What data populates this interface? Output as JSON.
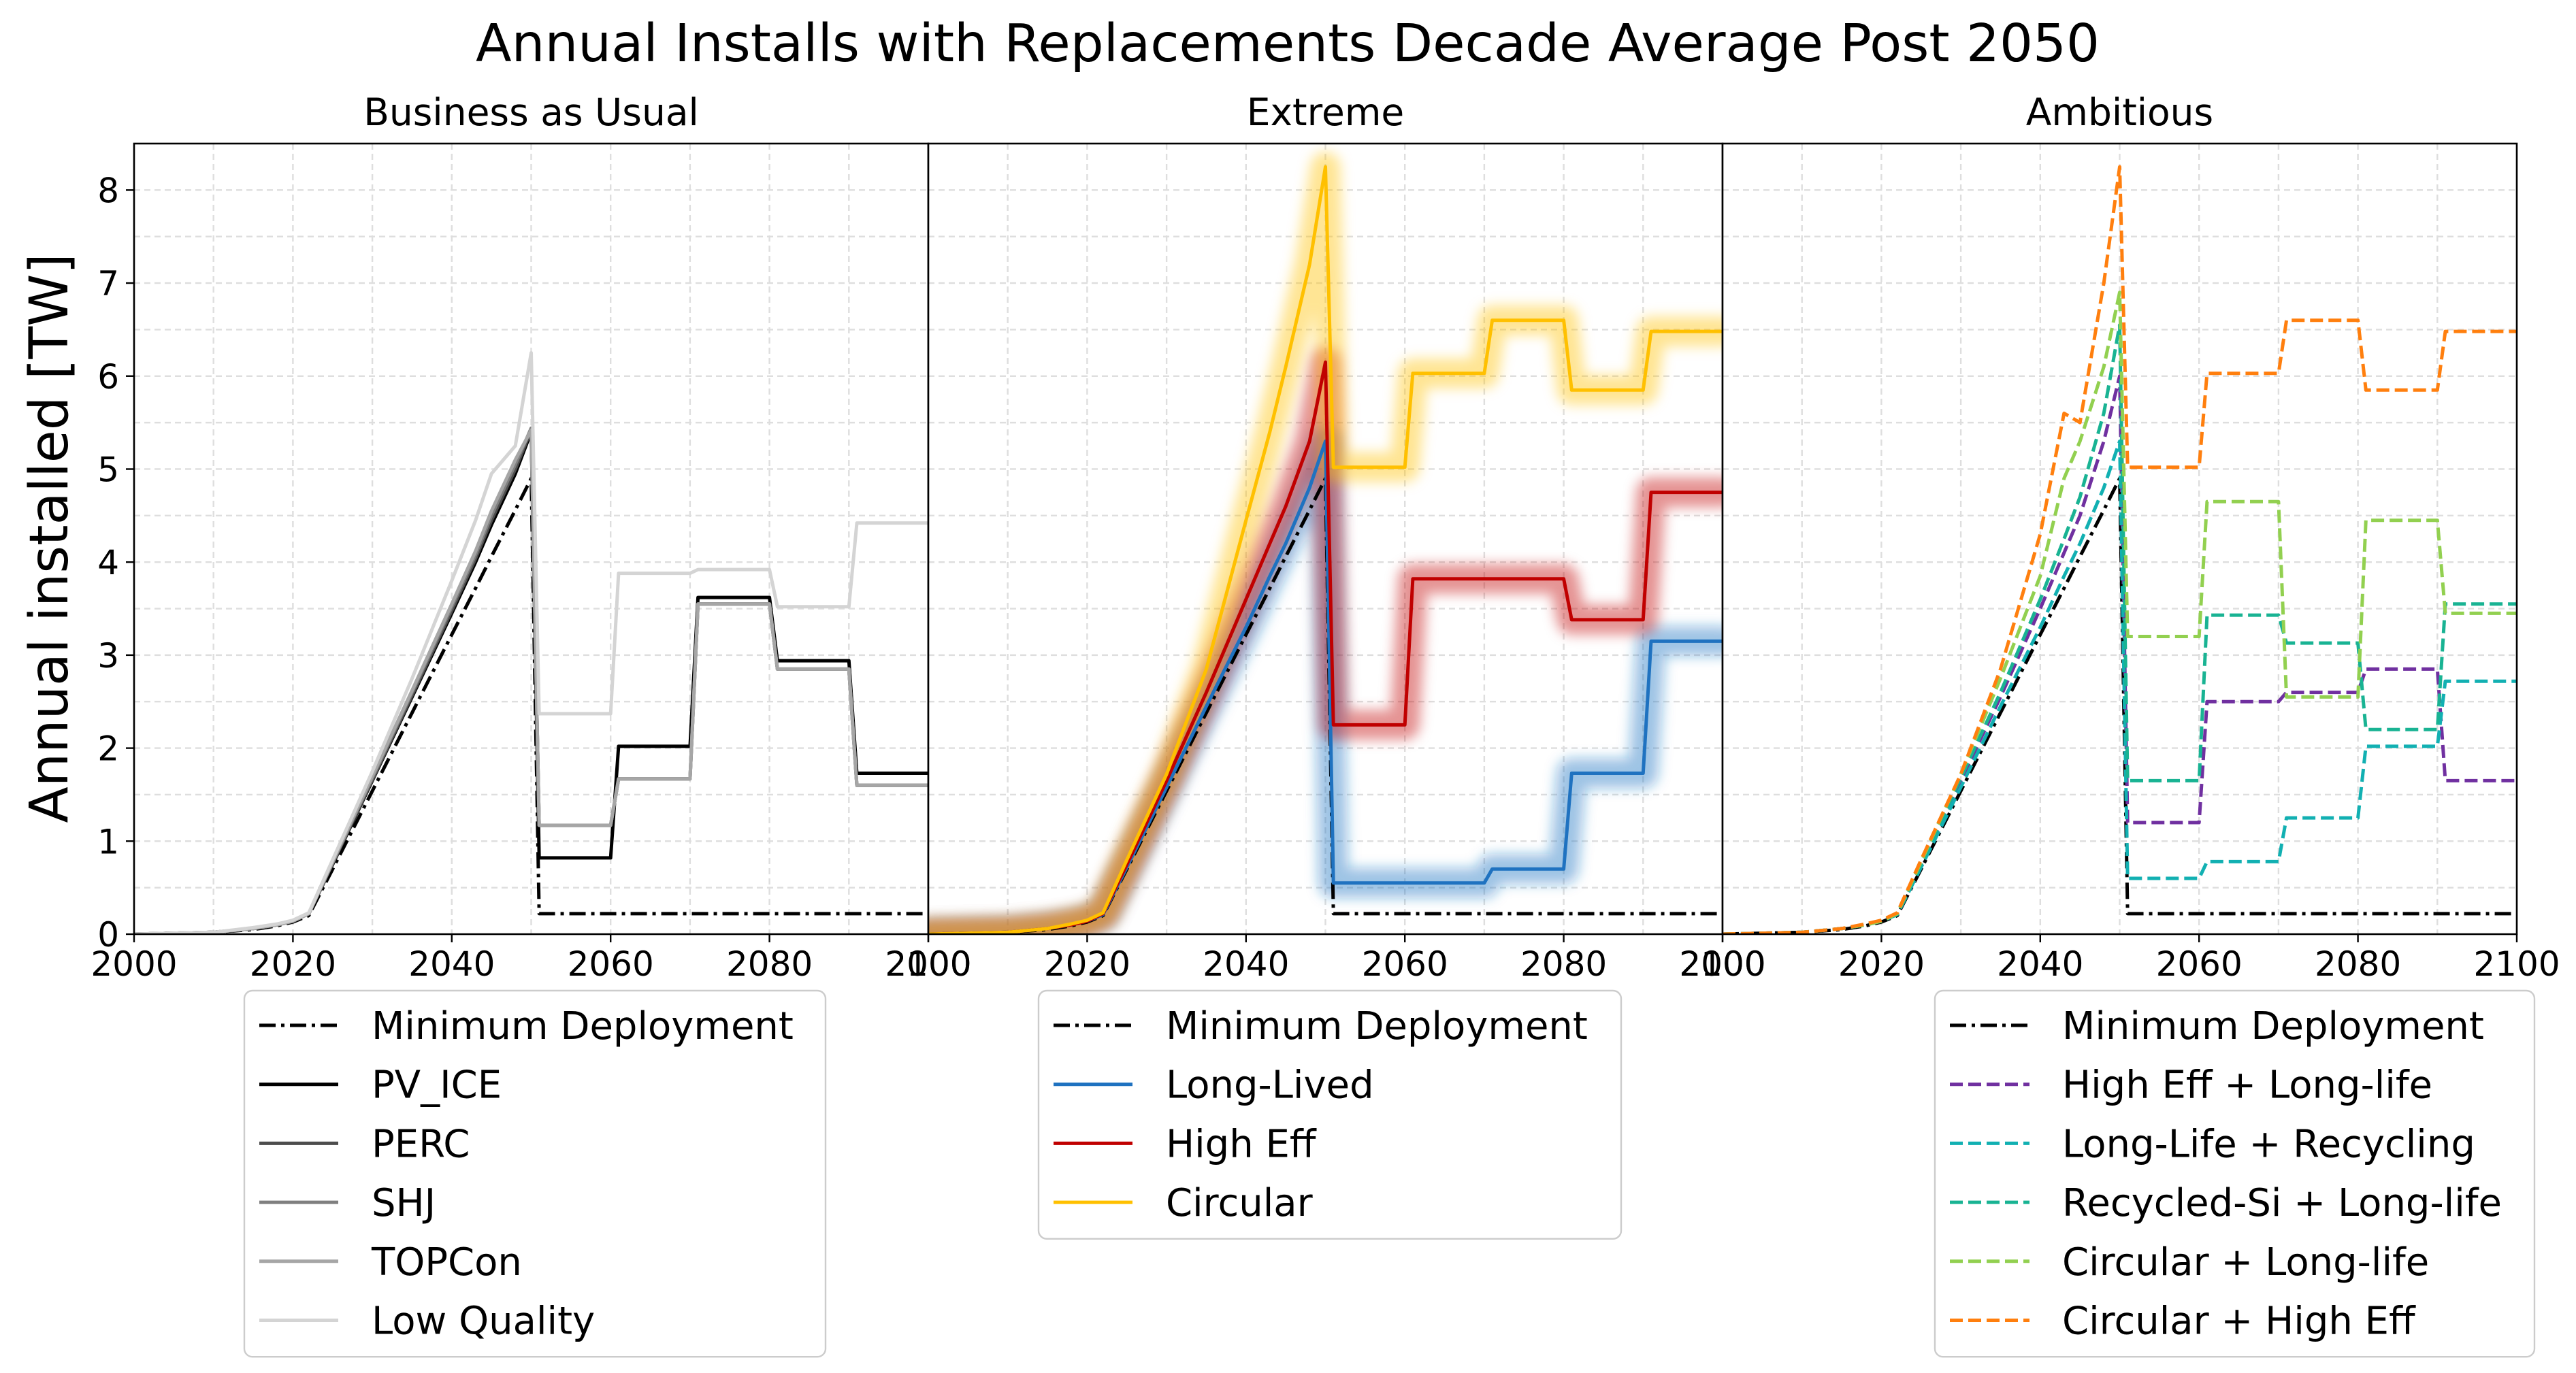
{
  "title": "Annual Installs with Replacements Decade Average Post 2050",
  "chart_data": [
    {
      "type": "line",
      "title": "Business as Usual",
      "ylabel": "Annual installed [TW]",
      "xlim": [
        2000,
        2100
      ],
      "ylim": [
        0,
        8.5
      ],
      "xticks": [
        2000,
        2020,
        2040,
        2060,
        2080,
        2100
      ],
      "yticks": [
        0,
        1,
        2,
        3,
        4,
        5,
        6,
        7,
        8
      ],
      "grid": true,
      "legend_placement": "below",
      "x": [
        2000,
        2005,
        2010,
        2015,
        2018,
        2020,
        2022,
        2025,
        2030,
        2035,
        2040,
        2043,
        2045,
        2048,
        2050,
        2051,
        2060,
        2061,
        2070,
        2071,
        2080,
        2081,
        2090,
        2091,
        2100
      ],
      "series": [
        {
          "name": "Minimum Deployment",
          "color": "#000000",
          "style": "dashdot",
          "values": [
            0,
            0.01,
            0.02,
            0.05,
            0.09,
            0.13,
            0.2,
            0.7,
            1.54,
            2.38,
            3.22,
            3.72,
            4.06,
            4.56,
            4.9,
            0.22,
            0.22,
            0.22,
            0.22,
            0.22,
            0.22,
            0.22,
            0.22,
            0.22,
            0.22
          ]
        },
        {
          "name": "PV_ICE",
          "color": "#000000",
          "style": "solid",
          "values": [
            0,
            0.01,
            0.02,
            0.06,
            0.1,
            0.14,
            0.22,
            0.75,
            1.65,
            2.55,
            3.45,
            4.0,
            4.4,
            4.95,
            5.4,
            0.82,
            0.82,
            2.02,
            2.02,
            3.62,
            3.62,
            2.94,
            2.94,
            1.73,
            1.73
          ]
        },
        {
          "name": "PERC",
          "color": "#4d4d4d",
          "style": "solid",
          "values": [
            0,
            0.01,
            0.02,
            0.06,
            0.1,
            0.14,
            0.22,
            0.76,
            1.66,
            2.57,
            3.48,
            4.04,
            4.45,
            5.0,
            5.42,
            1.17,
            1.17,
            1.67,
            1.67,
            3.55,
            3.55,
            2.85,
            2.85,
            1.6,
            1.6
          ]
        },
        {
          "name": "SHJ",
          "color": "#7f7f7f",
          "style": "solid",
          "values": [
            0,
            0.01,
            0.02,
            0.06,
            0.1,
            0.14,
            0.22,
            0.77,
            1.68,
            2.6,
            3.52,
            4.08,
            4.5,
            5.05,
            5.44,
            1.17,
            1.17,
            1.67,
            1.67,
            3.55,
            3.55,
            2.85,
            2.85,
            1.6,
            1.6
          ]
        },
        {
          "name": "TOPCon",
          "color": "#a6a6a6",
          "style": "solid",
          "values": [
            0,
            0.01,
            0.02,
            0.06,
            0.1,
            0.14,
            0.22,
            0.78,
            1.7,
            2.62,
            3.55,
            4.12,
            4.55,
            5.1,
            5.42,
            1.17,
            1.17,
            1.67,
            1.67,
            3.55,
            3.55,
            2.85,
            2.85,
            1.6,
            1.6
          ]
        },
        {
          "name": "Low Quality",
          "color": "#d4d4d4",
          "style": "solid",
          "values": [
            0,
            0.01,
            0.02,
            0.07,
            0.11,
            0.15,
            0.23,
            0.8,
            1.75,
            2.75,
            3.8,
            4.45,
            4.95,
            5.25,
            6.25,
            2.37,
            2.37,
            3.88,
            3.88,
            3.92,
            3.92,
            3.52,
            3.52,
            4.42,
            4.42
          ]
        }
      ]
    },
    {
      "type": "line",
      "title": "Extreme",
      "xlim": [
        2000,
        2100
      ],
      "ylim": [
        0,
        8.5
      ],
      "xticks": [
        2000,
        2020,
        2040,
        2060,
        2080,
        2100
      ],
      "grid": true,
      "legend_placement": "below",
      "x": [
        2000,
        2005,
        2010,
        2015,
        2018,
        2020,
        2022,
        2025,
        2030,
        2035,
        2040,
        2043,
        2045,
        2048,
        2050,
        2051,
        2060,
        2061,
        2070,
        2071,
        2080,
        2081,
        2090,
        2091,
        2100
      ],
      "series": [
        {
          "name": "Minimum Deployment",
          "color": "#000000",
          "style": "dashdot",
          "values": [
            0,
            0.01,
            0.02,
            0.05,
            0.09,
            0.13,
            0.2,
            0.7,
            1.54,
            2.38,
            3.22,
            3.72,
            4.06,
            4.56,
            4.9,
            0.22,
            0.22,
            0.22,
            0.22,
            0.22,
            0.22,
            0.22,
            0.22,
            0.22,
            0.22
          ]
        },
        {
          "name": "Long-Lived",
          "color": "#1f72c0",
          "style": "solid",
          "glow": true,
          "values": [
            0,
            0.01,
            0.02,
            0.06,
            0.1,
            0.14,
            0.21,
            0.72,
            1.58,
            2.45,
            3.3,
            3.85,
            4.2,
            4.8,
            5.3,
            0.55,
            0.55,
            0.55,
            0.55,
            0.7,
            0.7,
            1.73,
            1.73,
            3.15,
            3.15
          ]
        },
        {
          "name": "High Eff",
          "color": "#c00000",
          "style": "solid",
          "glow": true,
          "values": [
            0,
            0.01,
            0.02,
            0.06,
            0.1,
            0.14,
            0.22,
            0.75,
            1.65,
            2.6,
            3.6,
            4.2,
            4.6,
            5.3,
            6.15,
            2.25,
            2.25,
            3.82,
            3.82,
            3.82,
            3.82,
            3.38,
            3.38,
            4.75,
            4.75
          ]
        },
        {
          "name": "Circular",
          "color": "#ffc000",
          "style": "solid",
          "glow": true,
          "values": [
            0,
            0.01,
            0.02,
            0.06,
            0.11,
            0.15,
            0.23,
            0.8,
            1.72,
            2.85,
            4.45,
            5.4,
            6.1,
            7.2,
            8.25,
            5.02,
            5.02,
            6.03,
            6.03,
            6.6,
            6.6,
            5.85,
            5.85,
            6.48,
            6.48
          ]
        }
      ]
    },
    {
      "type": "line",
      "title": "Ambitious",
      "xlim": [
        2000,
        2100
      ],
      "ylim": [
        0,
        8.5
      ],
      "xticks": [
        2000,
        2020,
        2040,
        2060,
        2080,
        2100
      ],
      "grid": true,
      "legend_placement": "below",
      "x": [
        2000,
        2005,
        2010,
        2015,
        2018,
        2020,
        2022,
        2025,
        2030,
        2035,
        2040,
        2043,
        2045,
        2048,
        2050,
        2051,
        2060,
        2061,
        2070,
        2071,
        2080,
        2081,
        2090,
        2091,
        2100
      ],
      "series": [
        {
          "name": "Minimum Deployment",
          "color": "#000000",
          "style": "dashdot",
          "values": [
            0,
            0.01,
            0.02,
            0.05,
            0.09,
            0.13,
            0.2,
            0.7,
            1.54,
            2.38,
            3.22,
            3.72,
            4.06,
            4.56,
            4.9,
            0.22,
            0.22,
            0.22,
            0.22,
            0.22,
            0.22,
            0.22,
            0.22,
            0.22,
            0.22
          ]
        },
        {
          "name": "High Eff + Long-life",
          "color": "#7030a0",
          "style": "dashed",
          "values": [
            0,
            0.01,
            0.02,
            0.06,
            0.1,
            0.14,
            0.22,
            0.75,
            1.65,
            2.55,
            3.5,
            4.1,
            4.5,
            5.3,
            6.0,
            1.2,
            1.2,
            2.5,
            2.5,
            2.6,
            2.6,
            2.85,
            2.85,
            1.65,
            1.65
          ]
        },
        {
          "name": "Long-Life + Recycling",
          "color": "#12b0b2",
          "style": "dashed",
          "values": [
            0,
            0.01,
            0.02,
            0.06,
            0.1,
            0.14,
            0.21,
            0.72,
            1.58,
            2.45,
            3.3,
            3.85,
            4.2,
            4.8,
            5.3,
            0.6,
            0.6,
            0.78,
            0.78,
            1.25,
            1.25,
            2.02,
            2.02,
            2.72,
            2.72
          ]
        },
        {
          "name": "Recycled-Si + Long-life",
          "color": "#19b393",
          "style": "dashed",
          "values": [
            0,
            0.01,
            0.02,
            0.06,
            0.1,
            0.14,
            0.22,
            0.76,
            1.68,
            2.6,
            3.6,
            4.25,
            4.7,
            5.6,
            6.55,
            1.65,
            1.65,
            3.43,
            3.43,
            3.13,
            3.13,
            2.2,
            2.2,
            3.55,
            3.55
          ]
        },
        {
          "name": "Circular + Long-life",
          "color": "#92d050",
          "style": "dashed",
          "values": [
            0,
            0.01,
            0.02,
            0.06,
            0.1,
            0.14,
            0.22,
            0.78,
            1.72,
            2.75,
            3.85,
            4.9,
            5.3,
            6.1,
            6.9,
            3.2,
            3.2,
            4.65,
            4.65,
            2.55,
            2.55,
            4.45,
            4.45,
            3.45,
            3.45
          ]
        },
        {
          "name": "Circular + High Eff",
          "color": "#ff7f0e",
          "style": "dashed",
          "values": [
            0,
            0.01,
            0.02,
            0.06,
            0.11,
            0.15,
            0.23,
            0.8,
            1.72,
            2.85,
            4.3,
            5.6,
            5.5,
            7.0,
            8.25,
            5.02,
            5.02,
            6.03,
            6.03,
            6.6,
            6.6,
            5.85,
            5.85,
            6.48,
            6.48
          ]
        }
      ]
    }
  ]
}
